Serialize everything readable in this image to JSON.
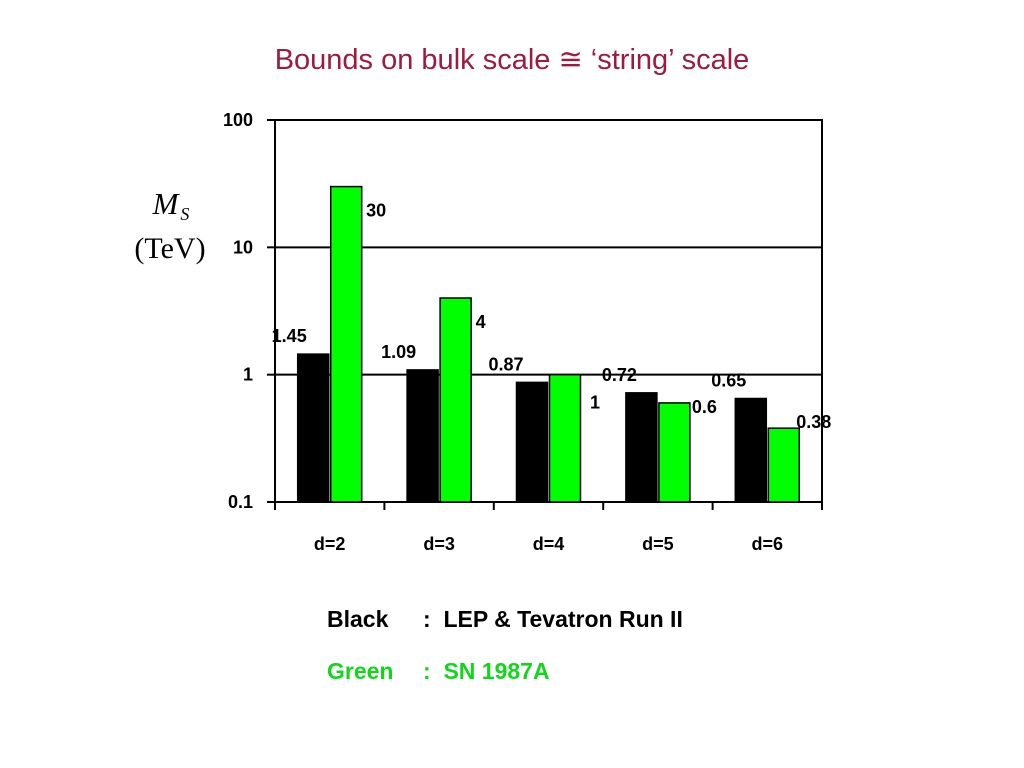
{
  "chart_data": {
    "type": "bar",
    "title": "Bounds on bulk scale ≅ ‘string’ scale",
    "ylabel": "M",
    "ylabel_subscript": "S",
    "ylabel_unit": "(TeV)",
    "yscale": "log",
    "ylim": [
      0.1,
      100
    ],
    "yticks": [
      "0.1",
      "1",
      "10",
      "100"
    ],
    "grid": true,
    "categories": [
      "d=2",
      "d=3",
      "d=4",
      "d=5",
      "d=6"
    ],
    "series": [
      {
        "color": "#000000",
        "values": [
          1.45,
          1.09,
          0.87,
          0.72,
          0.65
        ],
        "labels": [
          "1.45",
          "1.09",
          "0.87",
          "0.72",
          "0.65"
        ]
      },
      {
        "color": "#00ff00",
        "values": [
          30,
          4,
          1,
          0.6,
          0.38
        ],
        "labels": [
          "30",
          "4",
          "1",
          "0.6",
          "0.38"
        ]
      }
    ]
  },
  "legend": {
    "black": {
      "label": "Black",
      "text": ":  LEP & Tevatron Run II",
      "color": "#000000"
    },
    "green": {
      "label": "Green",
      "text": ":  SN 1987A",
      "color": "#11d71a"
    }
  }
}
